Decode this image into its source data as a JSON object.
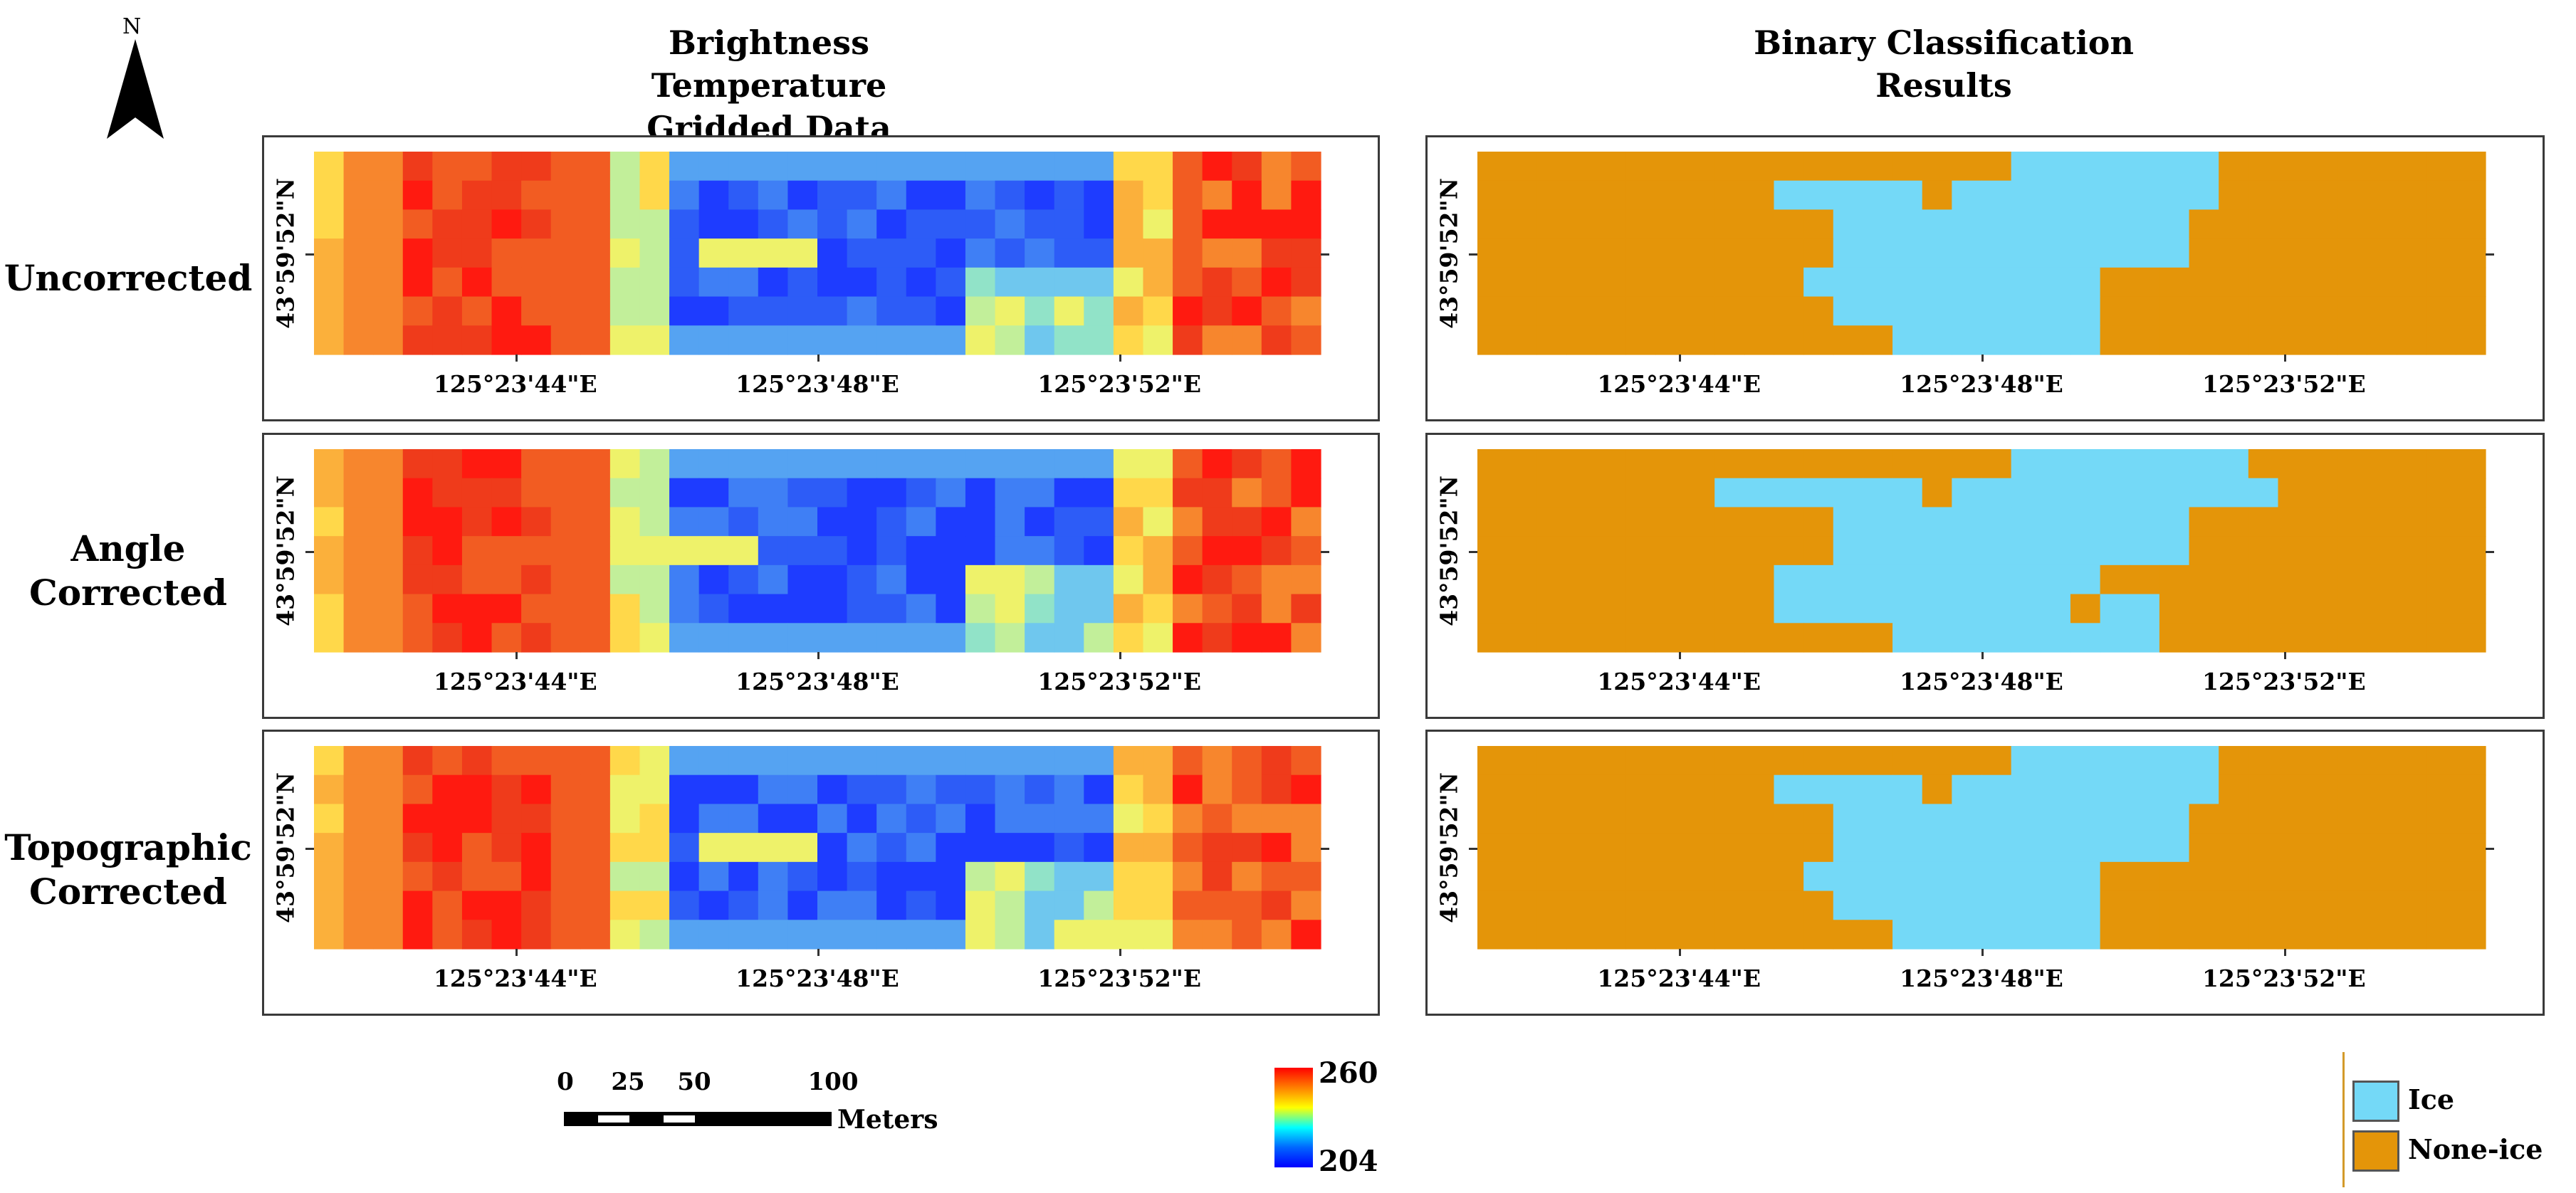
{
  "north_arrow": {
    "label": "N"
  },
  "titles": {
    "left_line1": "Brightness Temperature",
    "left_line2": "Gridded Data",
    "right_line1": "Binary Classification",
    "right_line2": "Results"
  },
  "rows": [
    {
      "label_line1": "Uncorrected",
      "label_line2": ""
    },
    {
      "label_line1": "Angle",
      "label_line2": "Corrected"
    },
    {
      "label_line1": "Topographic",
      "label_line2": "Corrected"
    }
  ],
  "axes": {
    "lat_label": "43°59'52\"N",
    "lon_labels": [
      "125°23'44\"E",
      "125°23'48\"E",
      "125°23'52\"E"
    ]
  },
  "scalebar": {
    "ticks": [
      "0",
      "25",
      "50",
      "100"
    ],
    "unit": "Meters"
  },
  "colorbar": {
    "max": "260",
    "min": "204",
    "colors": [
      "#ff0000",
      "#ff7f00",
      "#ffff00",
      "#00ffff",
      "#0066ff",
      "#0000ff"
    ]
  },
  "legend": {
    "items": [
      {
        "label": "Ice",
        "color": "#74d9f7"
      },
      {
        "label": "None-ice",
        "color": "#e49509"
      }
    ]
  },
  "bt_grid_colors": [
    "#0a14ff",
    "#1e3cff",
    "#2d5cf7",
    "#3f7ff5",
    "#55a3f2",
    "#6fc7ee",
    "#91e3c8",
    "#c2ef9a",
    "#eef26a",
    "#ffd84a",
    "#fbb03b",
    "#f7862d",
    "#f25c22",
    "#ef3b1b",
    "#ff1a10"
  ],
  "chart_data": {
    "type": "heatmap",
    "description_rows": [
      "Uncorrected",
      "Angle Corrected",
      "Topographic Corrected"
    ],
    "value_range": [
      204,
      260
    ],
    "classes": [
      "Ice",
      "None-ice"
    ]
  }
}
